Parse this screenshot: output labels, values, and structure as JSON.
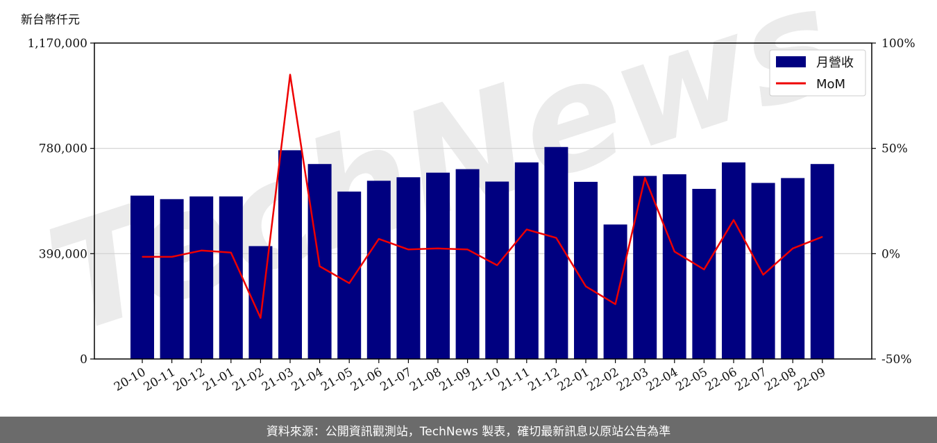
{
  "chart_data": {
    "type": "bar",
    "unit_label": "新台幣仟元",
    "categories": [
      "20-10",
      "20-11",
      "20-12",
      "21-01",
      "21-02",
      "21-03",
      "21-04",
      "21-05",
      "21-06",
      "21-07",
      "21-08",
      "21-09",
      "21-10",
      "21-11",
      "21-12",
      "22-01",
      "22-02",
      "22-03",
      "22-04",
      "22-05",
      "22-06",
      "22-07",
      "22-08",
      "22-09"
    ],
    "series": [
      {
        "name": "月營收",
        "type": "bar",
        "axis": "left",
        "color": "#000080",
        "values": [
          605000,
          592000,
          602000,
          602000,
          418000,
          773000,
          722000,
          620000,
          660000,
          673000,
          690000,
          703000,
          657000,
          728000,
          785000,
          656000,
          498000,
          678000,
          684000,
          630000,
          728000,
          652000,
          670000,
          722000
        ]
      },
      {
        "name": "MoM",
        "type": "line",
        "axis": "right",
        "color": "#ee0000",
        "unit": "%",
        "values": [
          -1.5,
          -1.5,
          1.5,
          0.5,
          -30.5,
          85.0,
          -6.0,
          -14.0,
          7.0,
          2.0,
          2.5,
          2.0,
          -5.5,
          11.5,
          7.5,
          -15.5,
          -24.0,
          36.0,
          1.0,
          -7.5,
          16.0,
          -10.0,
          2.5,
          8.0
        ]
      }
    ],
    "y_left": {
      "min": 0,
      "max": 1170000,
      "ticks": [
        0,
        390000,
        780000,
        1170000
      ],
      "tick_labels": [
        "0",
        "390,000",
        "780,000",
        "1,170,000"
      ]
    },
    "y_right": {
      "min": -50,
      "max": 100,
      "ticks": [
        -50,
        0,
        50,
        100
      ],
      "tick_labels": [
        "-50%",
        "0%",
        "50%",
        "100%"
      ]
    },
    "grid": "horizontal",
    "legend": "top-right"
  },
  "watermark": "TechNews",
  "footer": {
    "text": "資料來源：公開資訊觀測站，TechNews 製表，確切最新訊息以原站公告為準"
  }
}
